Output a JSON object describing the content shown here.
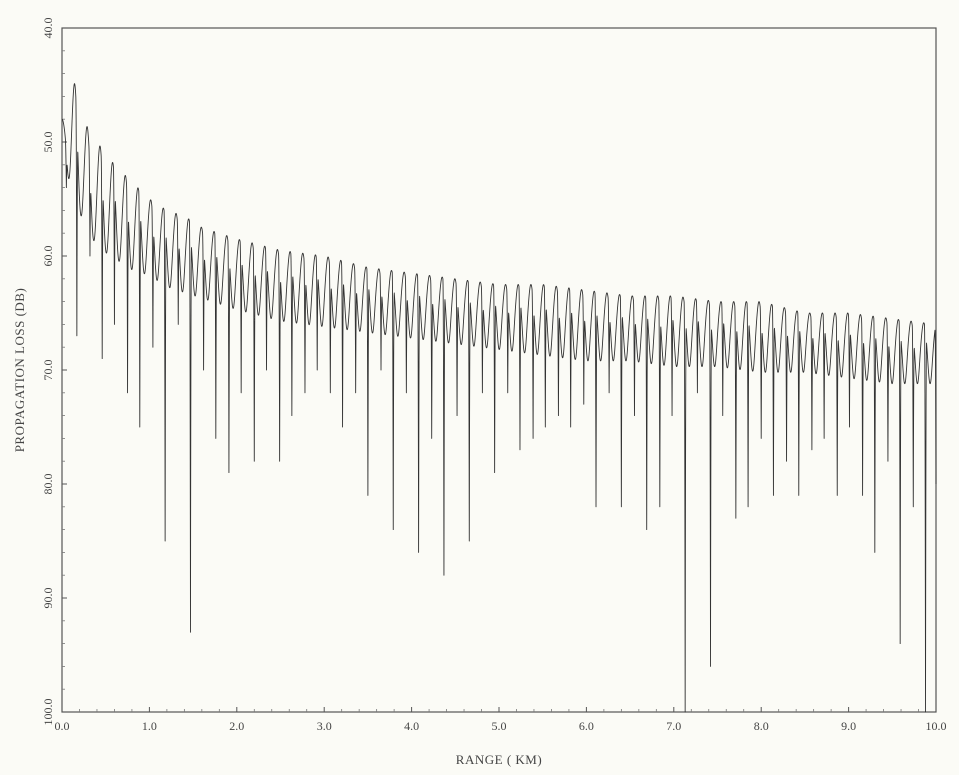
{
  "chart_data": {
    "type": "line",
    "title": "",
    "xlabel": "RANGE ( KM)",
    "ylabel": "PROPAGATION LOSS (DB)",
    "xlim": [
      0.0,
      10.0
    ],
    "ylim": [
      40.0,
      100.0
    ],
    "y_inverted": true,
    "grid": false,
    "legend": "none",
    "x_ticks": [
      "0.0",
      "1.0",
      "2.0",
      "3.0",
      "4.0",
      "5.0",
      "6.0",
      "7.0",
      "8.0",
      "9.0",
      "10.0"
    ],
    "y_ticks": [
      "40.0",
      "50.0",
      "60.0",
      "70.0",
      "80.0",
      "90.0",
      "100.0"
    ],
    "series": [
      {
        "color": "#333333",
        "interference_period_km": 0.145,
        "x": [
          0.05,
          0.1,
          0.2,
          0.3,
          0.4,
          0.5,
          0.6,
          0.8,
          1.0,
          1.2,
          1.4,
          1.6,
          1.8,
          2.0,
          2.5,
          3.0,
          3.5,
          4.0,
          4.5,
          5.0,
          5.5,
          6.0,
          6.5,
          7.0,
          7.5,
          8.0,
          8.5,
          9.0,
          9.5,
          10.0
        ],
        "peak_db": [
          48.0,
          44.0,
          46.0,
          49.0,
          50.0,
          51.0,
          52.0,
          53.5,
          55.0,
          56.0,
          56.5,
          57.5,
          58.0,
          58.5,
          59.5,
          60.0,
          61.0,
          61.5,
          62.0,
          62.5,
          62.5,
          63.0,
          63.5,
          63.5,
          64.0,
          64.0,
          65.0,
          65.0,
          65.5,
          66.0
        ],
        "mean_db": [
          50.0,
          52.0,
          54.0,
          55.5,
          57.0,
          57.5,
          58.0,
          59.0,
          59.5,
          60.5,
          61.0,
          61.5,
          62.0,
          62.5,
          63.5,
          64.0,
          64.5,
          65.0,
          65.5,
          66.0,
          66.5,
          67.0,
          67.0,
          67.5,
          67.5,
          68.0,
          68.0,
          68.5,
          69.0,
          69.0
        ],
        "null_depth_db": [
          [
            0.05,
            54.0
          ],
          [
            0.17,
            67.0
          ],
          [
            0.32,
            60.0
          ],
          [
            0.46,
            69.0
          ],
          [
            0.6,
            66.0
          ],
          [
            0.75,
            72.0
          ],
          [
            0.89,
            75.0
          ],
          [
            1.04,
            68.0
          ],
          [
            1.18,
            85.0
          ],
          [
            1.33,
            66.0
          ],
          [
            1.47,
            93.0
          ],
          [
            1.62,
            70.0
          ],
          [
            1.76,
            76.0
          ],
          [
            1.91,
            79.0
          ],
          [
            2.05,
            72.0
          ],
          [
            2.2,
            78.0
          ],
          [
            2.34,
            70.0
          ],
          [
            2.49,
            78.0
          ],
          [
            2.63,
            74.0
          ],
          [
            2.78,
            72.0
          ],
          [
            2.92,
            70.0
          ],
          [
            3.07,
            72.0
          ],
          [
            3.21,
            75.0
          ],
          [
            3.36,
            72.0
          ],
          [
            3.5,
            81.0
          ],
          [
            3.65,
            70.0
          ],
          [
            3.79,
            84.0
          ],
          [
            3.94,
            72.0
          ],
          [
            4.08,
            86.0
          ],
          [
            4.23,
            76.0
          ],
          [
            4.37,
            88.0
          ],
          [
            4.52,
            74.0
          ],
          [
            4.66,
            85.0
          ],
          [
            4.81,
            72.0
          ],
          [
            4.95,
            79.0
          ],
          [
            5.1,
            72.0
          ],
          [
            5.24,
            77.0
          ],
          [
            5.39,
            76.0
          ],
          [
            5.53,
            75.0
          ],
          [
            5.68,
            74.0
          ],
          [
            5.82,
            75.0
          ],
          [
            5.97,
            73.0
          ],
          [
            6.11,
            82.0
          ],
          [
            6.26,
            72.0
          ],
          [
            6.4,
            82.0
          ],
          [
            6.55,
            74.0
          ],
          [
            6.69,
            84.0
          ],
          [
            6.84,
            82.0
          ],
          [
            6.98,
            74.0
          ],
          [
            7.13,
            100.0
          ],
          [
            7.27,
            72.0
          ],
          [
            7.42,
            96.0
          ],
          [
            7.56,
            74.0
          ],
          [
            7.71,
            83.0
          ],
          [
            7.85,
            82.0
          ],
          [
            8.0,
            76.0
          ],
          [
            8.14,
            81.0
          ],
          [
            8.29,
            78.0
          ],
          [
            8.43,
            81.0
          ],
          [
            8.58,
            77.0
          ],
          [
            8.72,
            76.0
          ],
          [
            8.87,
            81.0
          ],
          [
            9.01,
            75.0
          ],
          [
            9.16,
            81.0
          ],
          [
            9.3,
            86.0
          ],
          [
            9.45,
            78.0
          ],
          [
            9.59,
            94.0
          ],
          [
            9.74,
            82.0
          ],
          [
            9.88,
            100.0
          ],
          [
            10.0,
            80.0
          ]
        ]
      }
    ]
  }
}
